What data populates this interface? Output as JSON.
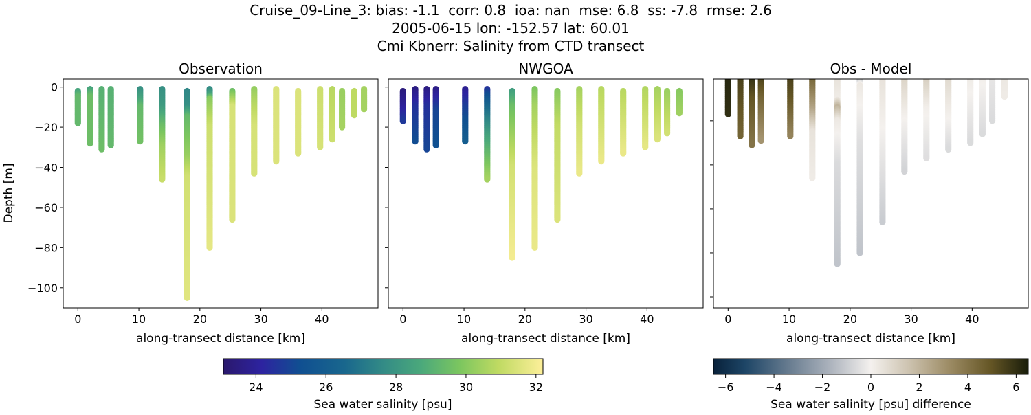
{
  "figure": {
    "title_lines": [
      "Cruise_09-Line_3: bias: -1.1  corr: 0.8  ioa: nan  mse: 6.8  ss: -7.8  rmse: 2.6",
      "2005-06-15 lon: -152.57 lat: 60.01",
      "Cmi Kbnerr: Salinity from CTD transect"
    ]
  },
  "chart_data": [
    {
      "type": "scatter",
      "title": "Observation",
      "xlabel": "along-transect distance [km]",
      "ylabel": "Depth [m]",
      "xlim": [
        -2.4,
        49.2
      ],
      "ylim": [
        -110,
        4
      ],
      "xticks": [
        {
          "v": 0,
          "label": "0"
        },
        {
          "v": 10,
          "label": "10"
        },
        {
          "v": 20,
          "label": "20"
        },
        {
          "v": 30,
          "label": "30"
        },
        {
          "v": 40,
          "label": "40"
        }
      ],
      "yticks": [
        {
          "v": 0,
          "label": "0"
        },
        {
          "v": -20,
          "label": "−20"
        },
        {
          "v": -40,
          "label": "−40"
        },
        {
          "v": -60,
          "label": "−60"
        },
        {
          "v": -80,
          "label": "−80"
        },
        {
          "v": -100,
          "label": "−100"
        }
      ],
      "colormap": "salinity",
      "profiles": [
        {
          "x": 0,
          "points": [
            [
              -2,
              28.5
            ],
            [
              -5,
              29.3
            ],
            [
              -18,
              29.3
            ]
          ]
        },
        {
          "x": 2.0,
          "points": [
            [
              -1,
              28.5
            ],
            [
              -5,
              29.5
            ],
            [
              -28,
              29.5
            ]
          ]
        },
        {
          "x": 3.9,
          "points": [
            [
              -1,
              29
            ],
            [
              -31,
              29.5
            ]
          ]
        },
        {
          "x": 5.4,
          "points": [
            [
              -1,
              29
            ],
            [
              -29,
              29.3
            ]
          ]
        },
        {
          "x": 10.2,
          "points": [
            [
              -1,
              27.8
            ],
            [
              -6,
              28.5
            ],
            [
              -10,
              29.3
            ],
            [
              -27,
              29.6
            ]
          ]
        },
        {
          "x": 13.8,
          "points": [
            [
              -1,
              27.8
            ],
            [
              -10,
              28.2
            ],
            [
              -20,
              29.5
            ],
            [
              -30,
              30.4
            ],
            [
              -46,
              31.1
            ]
          ]
        },
        {
          "x": 17.9,
          "points": [
            [
              -2,
              27.5
            ],
            [
              -10,
              27.8
            ],
            [
              -15,
              29.3
            ],
            [
              -35,
              30.3
            ],
            [
              -45,
              31.3
            ],
            [
              -105,
              31.6
            ]
          ]
        },
        {
          "x": 21.6,
          "points": [
            [
              -1,
              27.6
            ],
            [
              -4,
              28.5
            ],
            [
              -6,
              30
            ],
            [
              -20,
              31.2
            ],
            [
              -80,
              31.7
            ]
          ]
        },
        {
          "x": 25.3,
          "points": [
            [
              -2,
              29.5
            ],
            [
              -6,
              30.5
            ],
            [
              -10,
              31.4
            ],
            [
              -66,
              31.5
            ]
          ]
        },
        {
          "x": 28.9,
          "points": [
            [
              -1,
              30.2
            ],
            [
              -6,
              30.6
            ],
            [
              -20,
              31.4
            ],
            [
              -43,
              31.4
            ]
          ]
        },
        {
          "x": 32.5,
          "points": [
            [
              -1,
              31.5
            ],
            [
              -37,
              31.5
            ]
          ]
        },
        {
          "x": 36.1,
          "points": [
            [
              -2,
              31.5
            ],
            [
              -33,
              31.5
            ]
          ]
        },
        {
          "x": 39.7,
          "points": [
            [
              -1,
              31.2
            ],
            [
              -30,
              31.4
            ]
          ]
        },
        {
          "x": 41.7,
          "points": [
            [
              -1,
              30.8
            ],
            [
              -26,
              31.2
            ]
          ]
        },
        {
          "x": 43.3,
          "points": [
            [
              -2,
              30.3
            ],
            [
              -20,
              30.5
            ]
          ]
        },
        {
          "x": 45.3,
          "points": [
            [
              -2,
              30.9
            ],
            [
              -14,
              30.9
            ]
          ]
        },
        {
          "x": 46.9,
          "points": [
            [
              -1,
              30.5
            ],
            [
              -11,
              30.5
            ]
          ]
        }
      ]
    },
    {
      "type": "scatter",
      "title": "NWGOA",
      "xlabel": "along-transect distance [km]",
      "xlim": [
        -2.4,
        49.2
      ],
      "ylim": [
        -110,
        4
      ],
      "xticks": [
        {
          "v": 0,
          "label": "0"
        },
        {
          "v": 10,
          "label": "10"
        },
        {
          "v": 20,
          "label": "20"
        },
        {
          "v": 30,
          "label": "30"
        },
        {
          "v": 40,
          "label": "40"
        }
      ],
      "yticks": [
        {
          "v": 0,
          "label": ""
        },
        {
          "v": -20,
          "label": ""
        },
        {
          "v": -40,
          "label": ""
        },
        {
          "v": -60,
          "label": ""
        },
        {
          "v": -80,
          "label": ""
        },
        {
          "v": -100,
          "label": ""
        }
      ],
      "colormap": "salinity",
      "profiles": [
        {
          "x": 0,
          "points": [
            [
              -2,
              23.4
            ],
            [
              -10,
              24
            ],
            [
              -17,
              24.7
            ]
          ]
        },
        {
          "x": 2.0,
          "points": [
            [
              -1,
              23.5
            ],
            [
              -10,
              24.5
            ],
            [
              -27,
              25.2
            ]
          ]
        },
        {
          "x": 3.9,
          "points": [
            [
              -1,
              23.5
            ],
            [
              -10,
              24.5
            ],
            [
              -31,
              25
            ]
          ]
        },
        {
          "x": 5.4,
          "points": [
            [
              -1,
              23.6
            ],
            [
              -12,
              25
            ],
            [
              -29,
              25.3
            ]
          ]
        },
        {
          "x": 10.2,
          "points": [
            [
              -1,
              23.8
            ],
            [
              -10,
              24.8
            ],
            [
              -27,
              26
            ]
          ]
        },
        {
          "x": 13.8,
          "points": [
            [
              -1,
              24.5
            ],
            [
              -10,
              26.5
            ],
            [
              -25,
              28.5
            ],
            [
              -46,
              30.5
            ]
          ]
        },
        {
          "x": 17.9,
          "points": [
            [
              -2,
              28.3
            ],
            [
              -10,
              29.5
            ],
            [
              -40,
              31.3
            ],
            [
              -85,
              32
            ]
          ]
        },
        {
          "x": 21.6,
          "points": [
            [
              -1,
              29.8
            ],
            [
              -10,
              30.5
            ],
            [
              -40,
              31.5
            ],
            [
              -80,
              31.8
            ]
          ]
        },
        {
          "x": 25.3,
          "points": [
            [
              -2,
              30
            ],
            [
              -20,
              31
            ],
            [
              -66,
              31.5
            ]
          ]
        },
        {
          "x": 28.9,
          "points": [
            [
              -1,
              30.5
            ],
            [
              -20,
              31.3
            ],
            [
              -43,
              31.8
            ]
          ]
        },
        {
          "x": 32.5,
          "points": [
            [
              -1,
              30.8
            ],
            [
              -37,
              31.8
            ]
          ]
        },
        {
          "x": 36.1,
          "points": [
            [
              -2,
              30.8
            ],
            [
              -33,
              31.8
            ]
          ]
        },
        {
          "x": 39.7,
          "points": [
            [
              -1,
              30.7
            ],
            [
              -30,
              31.7
            ]
          ]
        },
        {
          "x": 41.7,
          "points": [
            [
              -1,
              30.5
            ],
            [
              -26,
              31.5
            ]
          ]
        },
        {
          "x": 43.3,
          "points": [
            [
              -2,
              30.3
            ],
            [
              -23,
              31.3
            ]
          ]
        },
        {
          "x": 45.3,
          "points": [
            [
              -2,
              30
            ],
            [
              -13,
              30.4
            ]
          ]
        }
      ]
    },
    {
      "type": "scatter",
      "title": "Obs - Model",
      "xlabel": "along-transect distance [km]",
      "xlim": [
        -2.4,
        49.2
      ],
      "ylim": [
        -105,
        -1
      ],
      "xticks": [
        {
          "v": 0,
          "label": "0"
        },
        {
          "v": 10,
          "label": "10"
        },
        {
          "v": 20,
          "label": "20"
        },
        {
          "v": 30,
          "label": "30"
        },
        {
          "v": 40,
          "label": "40"
        }
      ],
      "yticks": [
        {
          "v": -20,
          "label": ""
        },
        {
          "v": -40,
          "label": ""
        },
        {
          "v": -60,
          "label": ""
        },
        {
          "v": -80,
          "label": ""
        },
        {
          "v": -100,
          "label": ""
        }
      ],
      "colormap": "difference",
      "profiles": [
        {
          "x": 0,
          "points": [
            [
              -1,
              6.2
            ],
            [
              -17,
              6
            ]
          ]
        },
        {
          "x": 2.0,
          "points": [
            [
              -1,
              5.5
            ],
            [
              -27,
              4.5
            ]
          ]
        },
        {
          "x": 3.9,
          "points": [
            [
              -1,
              6
            ],
            [
              -10,
              5
            ],
            [
              -31,
              4
            ]
          ]
        },
        {
          "x": 5.4,
          "points": [
            [
              -1,
              5.5
            ],
            [
              -10,
              4.5
            ],
            [
              -29,
              3
            ]
          ]
        },
        {
          "x": 10.2,
          "points": [
            [
              -1,
              5.5
            ],
            [
              -10,
              5
            ],
            [
              -27,
              3.5
            ]
          ]
        },
        {
          "x": 13.8,
          "points": [
            [
              -1,
              4.5
            ],
            [
              -15,
              2.5
            ],
            [
              -25,
              0.5
            ],
            [
              -46,
              0.2
            ]
          ]
        },
        {
          "x": 17.9,
          "points": [
            [
              -1,
              0.5
            ],
            [
              -10,
              0.2
            ],
            [
              -14,
              2
            ],
            [
              -20,
              0.3
            ],
            [
              -40,
              -0.6
            ],
            [
              -85,
              -1.2
            ]
          ]
        },
        {
          "x": 21.6,
          "points": [
            [
              -1,
              -1.5
            ],
            [
              -4,
              0.3
            ],
            [
              -30,
              -0.5
            ],
            [
              -80,
              -1.2
            ]
          ]
        },
        {
          "x": 25.3,
          "points": [
            [
              -1,
              0.5
            ],
            [
              -20,
              0.1
            ],
            [
              -66,
              -1
            ]
          ]
        },
        {
          "x": 28.9,
          "points": [
            [
              -1,
              1
            ],
            [
              -20,
              0
            ],
            [
              -43,
              -0.8
            ]
          ]
        },
        {
          "x": 32.5,
          "points": [
            [
              -1,
              1.2
            ],
            [
              -15,
              0.1
            ],
            [
              -37,
              -0.5
            ]
          ]
        },
        {
          "x": 36.1,
          "points": [
            [
              -1,
              0.8
            ],
            [
              -20,
              0
            ],
            [
              -33,
              -0.6
            ]
          ]
        },
        {
          "x": 39.7,
          "points": [
            [
              -1,
              0.2
            ],
            [
              -30,
              -0.6
            ]
          ]
        },
        {
          "x": 41.7,
          "points": [
            [
              -1,
              0.1
            ],
            [
              -26,
              -0.6
            ]
          ]
        },
        {
          "x": 43.3,
          "points": [
            [
              -1,
              -0.3
            ],
            [
              -20,
              -0.6
            ]
          ]
        },
        {
          "x": 45.3,
          "points": [
            [
              -1,
              0.3
            ],
            [
              -9,
              0.2
            ]
          ]
        }
      ]
    }
  ],
  "colorbars": {
    "salinity": {
      "label": "Sea water salinity [psu]",
      "range": [
        23.07,
        32.2
      ],
      "ticks": [
        {
          "v": 24,
          "label": "24"
        },
        {
          "v": 26,
          "label": "26"
        },
        {
          "v": 28,
          "label": "28"
        },
        {
          "v": 30,
          "label": "30"
        },
        {
          "v": 32,
          "label": "32"
        }
      ],
      "stops": [
        [
          0,
          "#2a186c"
        ],
        [
          0.12,
          "#2d23a0"
        ],
        [
          0.24,
          "#104f91"
        ],
        [
          0.38,
          "#19678d"
        ],
        [
          0.5,
          "#338b86"
        ],
        [
          0.62,
          "#4ba97b"
        ],
        [
          0.74,
          "#7cc65f"
        ],
        [
          0.86,
          "#bfda62"
        ],
        [
          1,
          "#fdef9a"
        ]
      ]
    },
    "difference": {
      "label": "Sea water salinity [psu] difference",
      "range": [
        -6.5,
        6.5
      ],
      "ticks": [
        {
          "v": -6,
          "label": "−6"
        },
        {
          "v": -4,
          "label": "−4"
        },
        {
          "v": -2,
          "label": "−2"
        },
        {
          "v": 0,
          "label": "0"
        },
        {
          "v": 2,
          "label": "2"
        },
        {
          "v": 4,
          "label": "4"
        },
        {
          "v": 6,
          "label": "6"
        }
      ],
      "stops": [
        [
          0,
          "#08213a"
        ],
        [
          0.1,
          "#1d4566"
        ],
        [
          0.25,
          "#6d8093"
        ],
        [
          0.38,
          "#b1b7c0"
        ],
        [
          0.5,
          "#f4f1ee"
        ],
        [
          0.62,
          "#cdc3b0"
        ],
        [
          0.75,
          "#9c8b64"
        ],
        [
          0.88,
          "#655625"
        ],
        [
          1,
          "#181c0a"
        ]
      ]
    }
  }
}
